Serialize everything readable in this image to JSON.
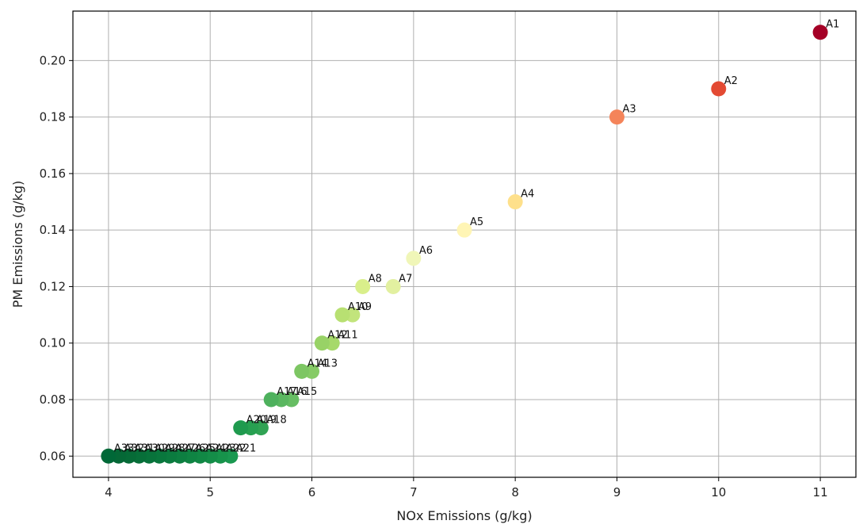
{
  "chart_data": {
    "type": "scatter",
    "title": "",
    "xlabel": "NOx Emissions (g/kg)",
    "ylabel": "PM Emissions (g/kg)",
    "xlim": [
      3.65,
      11.35
    ],
    "ylim": [
      0.0525,
      0.2175
    ],
    "xticks": [
      4,
      5,
      6,
      7,
      8,
      9,
      10,
      11
    ],
    "yticks": [
      0.06,
      0.08,
      0.1,
      0.12,
      0.14,
      0.16,
      0.18,
      0.2
    ],
    "ytick_labels": [
      "0.06",
      "0.08",
      "0.10",
      "0.12",
      "0.14",
      "0.16",
      "0.18",
      "0.20"
    ],
    "grid": true,
    "colormap": "RdYlGn",
    "points": [
      {
        "label": "A1",
        "x": 11.0,
        "y": 0.21,
        "color": "#a50026"
      },
      {
        "label": "A2",
        "x": 10.0,
        "y": 0.19,
        "color": "#e34a33"
      },
      {
        "label": "A3",
        "x": 9.0,
        "y": 0.18,
        "color": "#f4845a"
      },
      {
        "label": "A4",
        "x": 8.0,
        "y": 0.15,
        "color": "#fee08b"
      },
      {
        "label": "A5",
        "x": 7.5,
        "y": 0.14,
        "color": "#fff5b5"
      },
      {
        "label": "A6",
        "x": 7.0,
        "y": 0.13,
        "color": "#f0f6b8"
      },
      {
        "label": "A7",
        "x": 6.8,
        "y": 0.12,
        "color": "#e2f0a0"
      },
      {
        "label": "A8",
        "x": 6.5,
        "y": 0.12,
        "color": "#d9ef8b"
      },
      {
        "label": "A9",
        "x": 6.4,
        "y": 0.11,
        "color": "#c2e47c"
      },
      {
        "label": "A10",
        "x": 6.3,
        "y": 0.11,
        "color": "#b8e072"
      },
      {
        "label": "A11",
        "x": 6.2,
        "y": 0.1,
        "color": "#a6d96a"
      },
      {
        "label": "A12",
        "x": 6.1,
        "y": 0.1,
        "color": "#98d266"
      },
      {
        "label": "A13",
        "x": 6.0,
        "y": 0.09,
        "color": "#86cb66"
      },
      {
        "label": "A14",
        "x": 5.9,
        "y": 0.09,
        "color": "#7dc663"
      },
      {
        "label": "A15",
        "x": 5.8,
        "y": 0.08,
        "color": "#66bd63"
      },
      {
        "label": "A16",
        "x": 5.7,
        "y": 0.08,
        "color": "#5ab760"
      },
      {
        "label": "A17",
        "x": 5.6,
        "y": 0.08,
        "color": "#4eb15d"
      },
      {
        "label": "A18",
        "x": 5.5,
        "y": 0.07,
        "color": "#30a354"
      },
      {
        "label": "A19",
        "x": 5.4,
        "y": 0.07,
        "color": "#27a051"
      },
      {
        "label": "A20",
        "x": 5.3,
        "y": 0.07,
        "color": "#1f9a4e"
      },
      {
        "label": "A21",
        "x": 5.2,
        "y": 0.06,
        "color": "#1a9850"
      },
      {
        "label": "A22",
        "x": 5.1,
        "y": 0.06,
        "color": "#17934b"
      },
      {
        "label": "A23",
        "x": 5.0,
        "y": 0.06,
        "color": "#148d48"
      },
      {
        "label": "A24",
        "x": 4.9,
        "y": 0.06,
        "color": "#118845"
      },
      {
        "label": "A25",
        "x": 4.8,
        "y": 0.06,
        "color": "#0f8443"
      },
      {
        "label": "A26",
        "x": 4.7,
        "y": 0.06,
        "color": "#0d7f41"
      },
      {
        "label": "A27",
        "x": 4.6,
        "y": 0.06,
        "color": "#0b7b3f"
      },
      {
        "label": "A28",
        "x": 4.5,
        "y": 0.06,
        "color": "#09773d"
      },
      {
        "label": "A29",
        "x": 4.4,
        "y": 0.06,
        "color": "#08733b"
      },
      {
        "label": "A30",
        "x": 4.3,
        "y": 0.06,
        "color": "#076f39"
      },
      {
        "label": "A31",
        "x": 4.2,
        "y": 0.06,
        "color": "#066b37"
      },
      {
        "label": "A32",
        "x": 4.1,
        "y": 0.06,
        "color": "#056836"
      },
      {
        "label": "A33",
        "x": 4.0,
        "y": 0.06,
        "color": "#006837"
      }
    ]
  }
}
